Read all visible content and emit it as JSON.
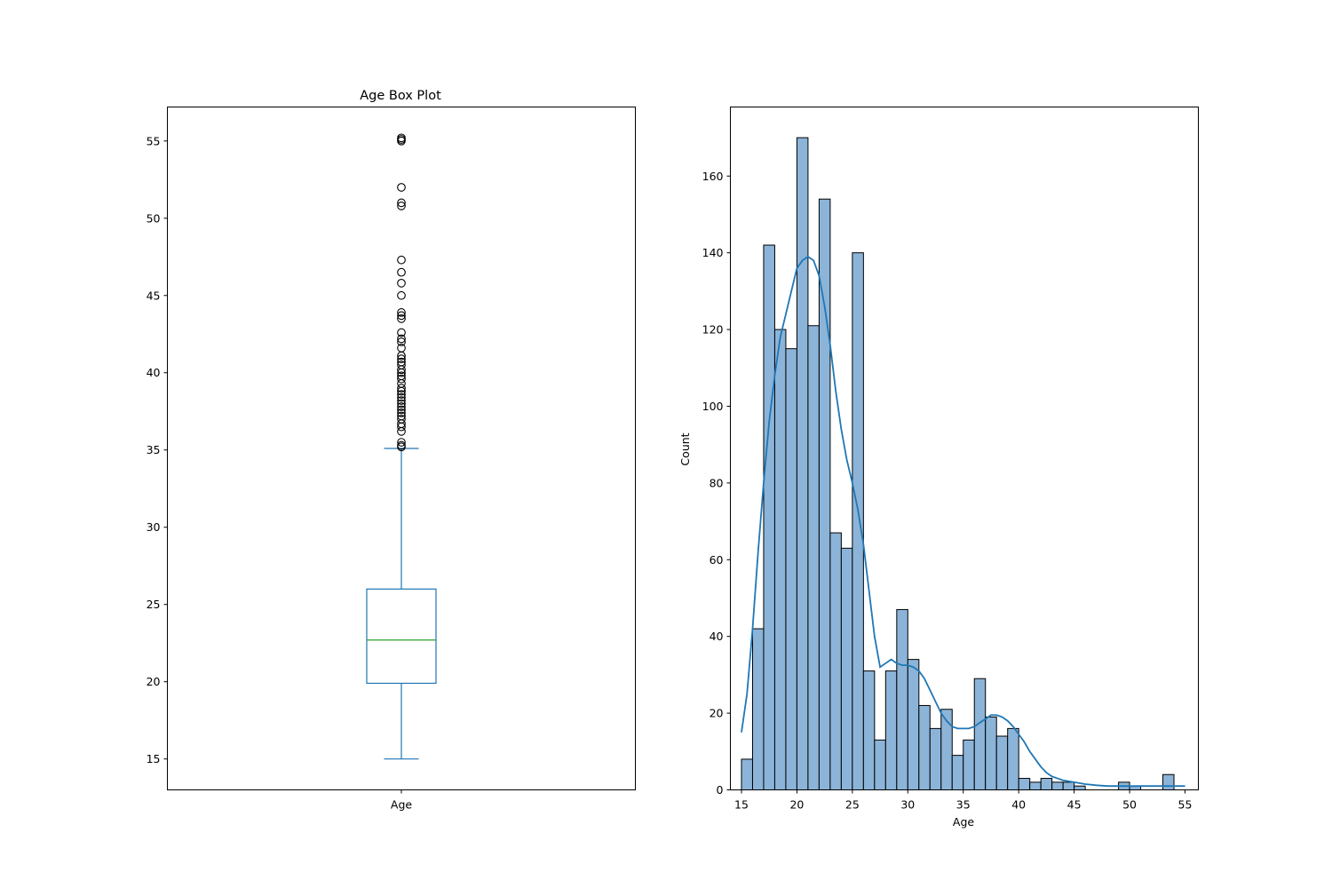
{
  "chart_data": [
    {
      "type": "box",
      "title": "Age Box Plot",
      "categories": [
        "Age"
      ],
      "xlabel": "",
      "ylabel": "",
      "ylim": [
        13,
        57.2
      ],
      "yticks": [
        15,
        20,
        25,
        30,
        35,
        40,
        45,
        50,
        55
      ],
      "box": {
        "whisker_low": 15.0,
        "q1": 19.9,
        "median": 22.7,
        "q3": 26.0,
        "whisker_high": 35.1
      },
      "outliers": [
        35.2,
        35.3,
        35.5,
        36.2,
        36.5,
        36.7,
        37.0,
        37.2,
        37.4,
        37.6,
        37.8,
        38.0,
        38.2,
        38.4,
        38.6,
        38.8,
        39.0,
        39.3,
        39.6,
        39.8,
        40.0,
        40.2,
        40.5,
        40.7,
        40.9,
        41.1,
        41.6,
        42.0,
        42.2,
        42.6,
        43.5,
        43.7,
        43.9,
        45.0,
        45.8,
        46.5,
        47.3,
        50.8,
        51.0,
        52.0,
        55.0,
        55.1,
        55.2
      ],
      "grid": false,
      "colors": {
        "box": "#1f77b4",
        "median": "#2ca02c",
        "outlier": "#000000"
      }
    },
    {
      "type": "bar",
      "subtype": "histogram",
      "title": "",
      "xlabel": "Age",
      "ylabel": "Count",
      "xlim": [
        14.0,
        56.2
      ],
      "ylim": [
        0,
        178
      ],
      "xticks": [
        15,
        20,
        25,
        30,
        35,
        40,
        45,
        50,
        55
      ],
      "yticks": [
        0,
        20,
        40,
        60,
        80,
        100,
        120,
        140,
        160
      ],
      "bin_start": 15.0,
      "bin_width": 1.0,
      "values": [
        8,
        42,
        142,
        120,
        115,
        170,
        121,
        154,
        67,
        63,
        140,
        31,
        13,
        31,
        47,
        34,
        22,
        16,
        21,
        9,
        13,
        29,
        19,
        14,
        16,
        3,
        2,
        3,
        2,
        2,
        1,
        0,
        0,
        0,
        2,
        1,
        0,
        0,
        4,
        0
      ],
      "kde": {
        "x": [
          15,
          15.5,
          16,
          16.5,
          17,
          17.5,
          18,
          18.5,
          19,
          19.5,
          20,
          20.5,
          21,
          21.5,
          22,
          22.5,
          23,
          23.5,
          24,
          24.5,
          25,
          25.5,
          26,
          26.5,
          27,
          27.5,
          28,
          28.5,
          29,
          29.5,
          30,
          30.5,
          31,
          31.5,
          32,
          32.5,
          33,
          33.5,
          34,
          34.5,
          35,
          35.5,
          36,
          36.5,
          37,
          37.5,
          38,
          38.5,
          39,
          39.5,
          40,
          40.5,
          41,
          41.5,
          42,
          42.5,
          43,
          43.5,
          44,
          45,
          46,
          47,
          48,
          49,
          50,
          51,
          52,
          53,
          54,
          55
        ],
        "y": [
          15,
          25,
          42,
          62,
          80,
          96,
          108,
          118,
          124,
          130,
          136,
          138,
          139,
          138,
          134,
          126,
          116,
          104,
          94,
          86,
          80,
          73,
          64,
          52,
          40,
          32,
          33,
          34,
          33,
          32.5,
          32.5,
          32,
          31,
          29,
          26,
          23,
          20,
          18,
          16.5,
          16,
          16,
          16,
          16.5,
          17.5,
          18.5,
          19.5,
          19.5,
          19,
          18,
          16.5,
          14.5,
          12.5,
          10,
          8,
          6,
          4.5,
          3.5,
          3,
          2.5,
          2,
          1.5,
          1.2,
          1,
          1,
          1,
          1,
          1,
          1,
          1,
          1
        ]
      },
      "grid": false,
      "colors": {
        "bar_fill": "#8cb4d8",
        "bar_edge": "#000000",
        "kde": "#1f77b4"
      }
    }
  ]
}
